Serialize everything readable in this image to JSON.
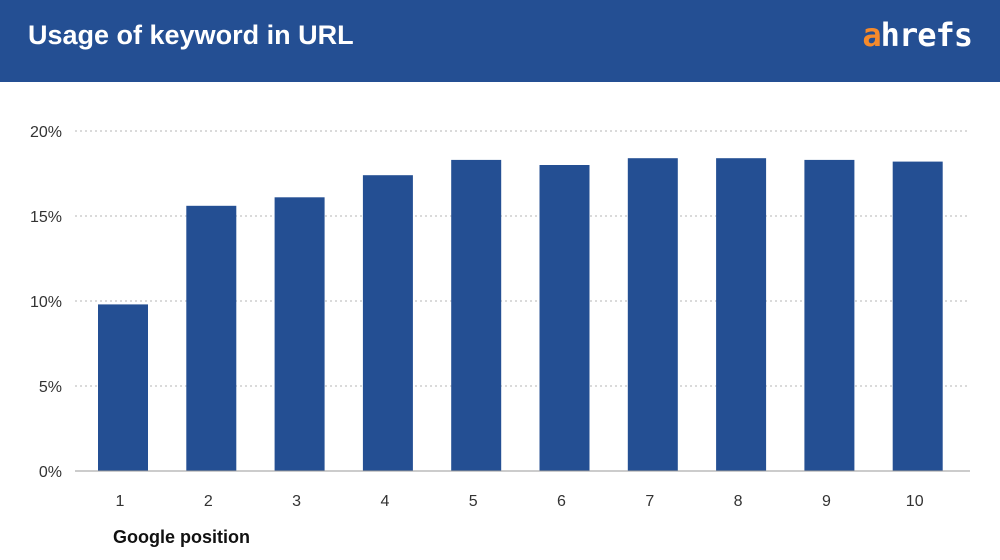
{
  "header": {
    "title": "Usage of keyword in URL",
    "logo_accent": "a",
    "logo_rest": "hrefs"
  },
  "colors": {
    "header_bg": "#244f93",
    "bar": "#244f93",
    "logo_accent": "#f58a2b"
  },
  "chart_data": {
    "type": "bar",
    "title": "",
    "xlabel": "Google position",
    "ylabel": "",
    "categories": [
      "1",
      "2",
      "3",
      "4",
      "5",
      "6",
      "7",
      "8",
      "9",
      "10"
    ],
    "values": [
      9.8,
      15.6,
      16.1,
      17.4,
      18.3,
      18.0,
      18.4,
      18.4,
      18.3,
      18.2
    ],
    "ylim": [
      0,
      20
    ],
    "yticks": [
      0,
      5,
      10,
      15,
      20
    ],
    "ytick_labels": [
      "0%",
      "5%",
      "10%",
      "15%",
      "20%"
    ],
    "grid": true,
    "legend": "none"
  }
}
